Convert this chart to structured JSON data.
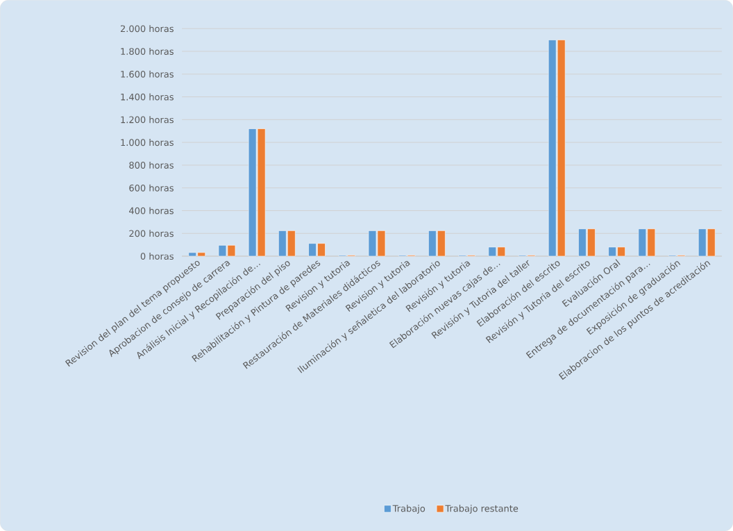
{
  "chart_data": {
    "type": "bar",
    "categories": [
      "Revision del plan del tema propuesto",
      "Aprobacion de consejo de carrera",
      "Análisis Inicial y Recopilación de…",
      "Preparación del piso",
      "Rehabilitación y Pintura de paredes",
      "Revision y tutoria",
      "Restauración de Materiales didácticos",
      "Revision y tutoria",
      "Iluminación y señaletica del laboratorio",
      "Revisión y tutoria",
      "Elaboración nuevas cajas de…",
      "Revisión y Tutoria del taller",
      "Elaboración del escrito",
      "Revisión y Tutoria del escrito",
      "Evaluación Oral",
      "Entrega de documentación para…",
      "Exposición de graduación",
      "Elaboracion de los puntos de acreditación"
    ],
    "series": [
      {
        "name": "Trabajo",
        "color": "#5b9bd5",
        "values": [
          32,
          96,
          1120,
          224,
          112,
          8,
          224,
          8,
          224,
          8,
          80,
          8,
          1900,
          240,
          80,
          240,
          8,
          240
        ]
      },
      {
        "name": "Trabajo restante",
        "color": "#ed7d31",
        "values": [
          32,
          96,
          1120,
          224,
          112,
          8,
          224,
          8,
          224,
          8,
          80,
          8,
          1900,
          240,
          80,
          240,
          8,
          240
        ]
      }
    ],
    "ylim": [
      0,
      2000
    ],
    "yticks": [
      {
        "value": 0,
        "label": "0 horas"
      },
      {
        "value": 200,
        "label": "200 horas"
      },
      {
        "value": 400,
        "label": "400 horas"
      },
      {
        "value": 600,
        "label": "600 horas"
      },
      {
        "value": 800,
        "label": "800 horas"
      },
      {
        "value": 1000,
        "label": "1.000 horas"
      },
      {
        "value": 1200,
        "label": "1.200 horas"
      },
      {
        "value": 1400,
        "label": "1.400 horas"
      },
      {
        "value": 1600,
        "label": "1.600 horas"
      },
      {
        "value": 1800,
        "label": "1.800 horas"
      },
      {
        "value": 2000,
        "label": "2.000 horas"
      }
    ],
    "grid": "y",
    "legend": "bottom"
  }
}
